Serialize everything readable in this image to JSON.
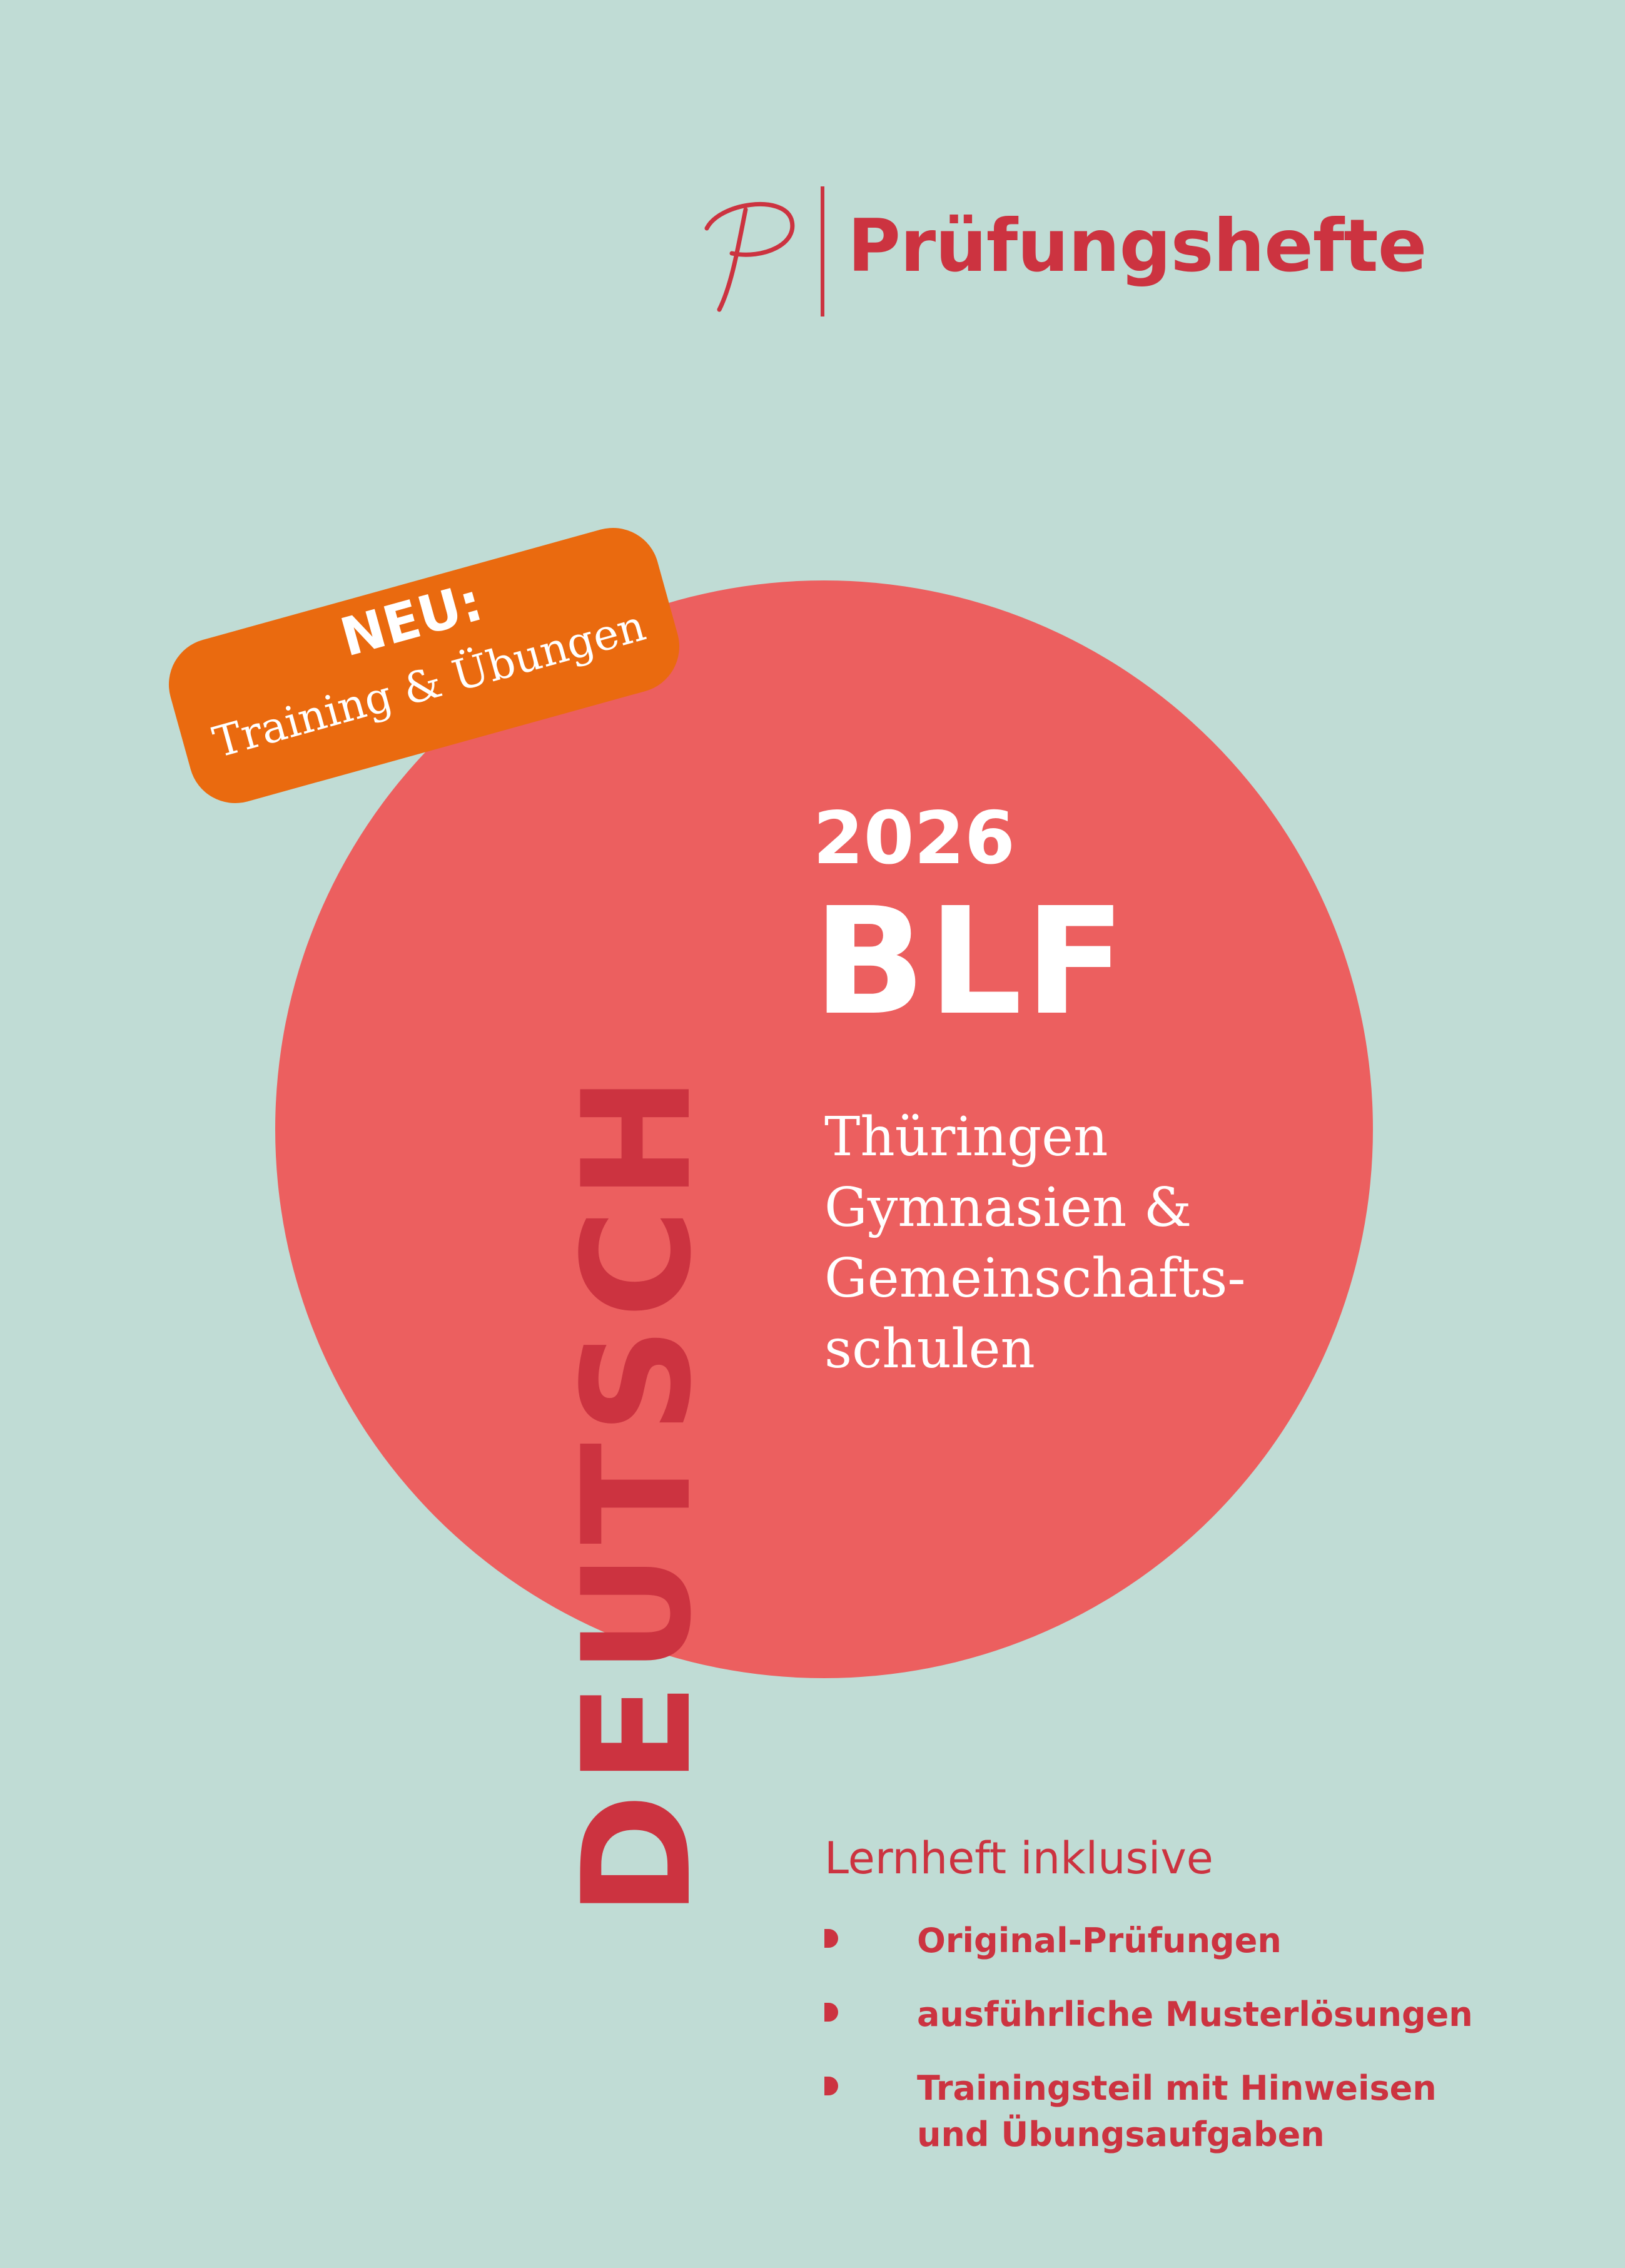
{
  "colors": {
    "background": "#c0dcd5",
    "circle": "#ec5f5f",
    "accent_red": "#cc3340",
    "badge": "#ea6a0f",
    "text_on_circle": "#ffffff"
  },
  "brand": {
    "logo_icon": "script-p-logo-icon",
    "name": "Prüfungshefte"
  },
  "badge": {
    "title": "NEU:",
    "subtitle": "Training & Übungen"
  },
  "cover": {
    "year": "2026",
    "exam": "BLF",
    "region_lines": [
      "Thüringen",
      "Gymnasien &",
      "Gemeinschafts-",
      "schulen"
    ],
    "subject": "DEUTSCH"
  },
  "contents": {
    "intro": "Lernheft inklusive",
    "bullet_icon": "half-circle-bullet-icon",
    "items": [
      "Original-Prüfungen",
      "ausführliche Musterlösungen",
      "Trainingsteil mit Hinweisen und Übungsaufgaben"
    ]
  }
}
